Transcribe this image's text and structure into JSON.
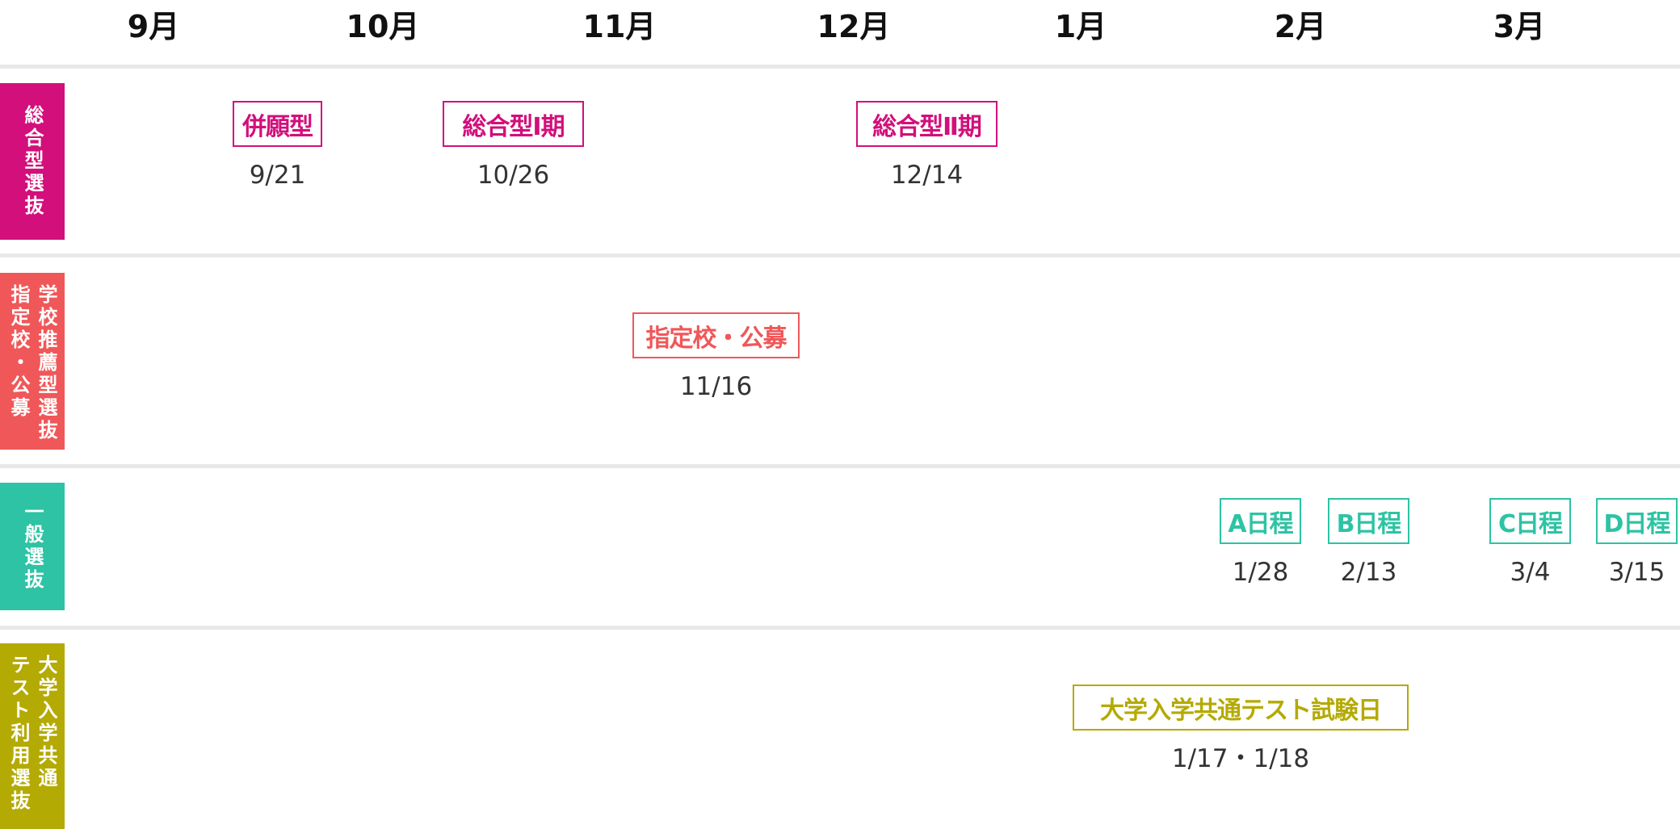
{
  "colors": {
    "sogo": "#d20f7b",
    "shitei": "#f05759",
    "ippan": "#2dc3a4",
    "kyotsu": "#b4aa04"
  },
  "months": [
    "9月",
    "10月",
    "11月",
    "12月",
    "1月",
    "2月",
    "3月"
  ],
  "categories": [
    {
      "key": "sogo",
      "columns": [
        "総合型選抜"
      ]
    },
    {
      "key": "shitei",
      "columns": [
        "学校推薦型選抜",
        "指定校・公募"
      ]
    },
    {
      "key": "ippan",
      "columns": [
        "一般選抜"
      ]
    },
    {
      "key": "kyotsu",
      "columns": [
        "大学入学共通",
        "テスト利用選抜"
      ]
    }
  ],
  "events": [
    {
      "category": "sogo",
      "label": "併願型",
      "date": "9/21"
    },
    {
      "category": "sogo",
      "label": "総合型Ⅰ期",
      "date": "10/26"
    },
    {
      "category": "sogo",
      "label": "総合型Ⅱ期",
      "date": "12/14"
    },
    {
      "category": "shitei",
      "label": "指定校・公募",
      "date": "11/16"
    },
    {
      "category": "ippan",
      "label": "A日程",
      "date": "1/28"
    },
    {
      "category": "ippan",
      "label": "B日程",
      "date": "2/13"
    },
    {
      "category": "ippan",
      "label": "C日程",
      "date": "3/4"
    },
    {
      "category": "ippan",
      "label": "D日程",
      "date": "3/15"
    },
    {
      "category": "kyotsu",
      "label": "大学入学共通テスト試験日",
      "date": "1/17・1/18"
    }
  ]
}
